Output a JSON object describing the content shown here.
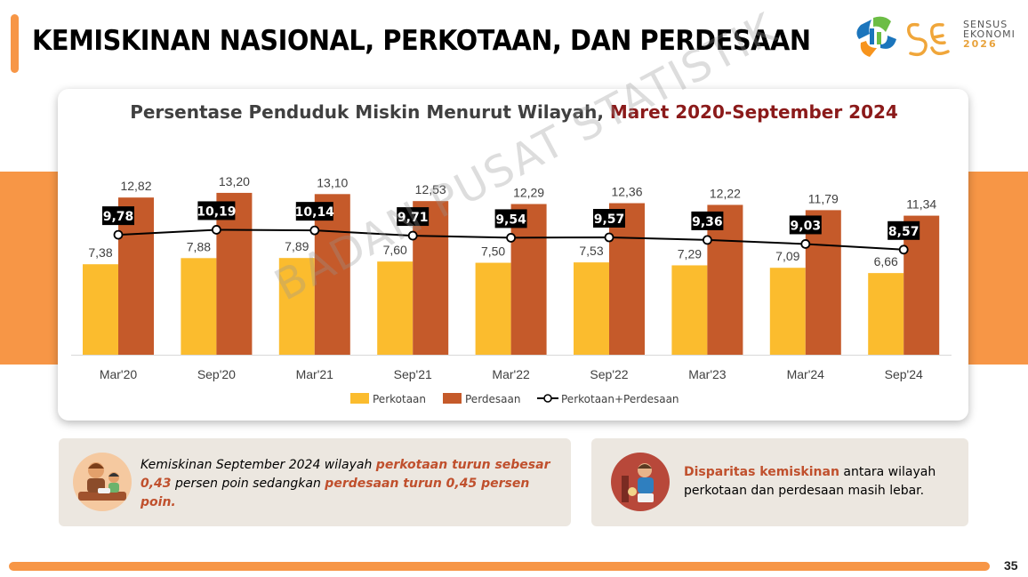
{
  "header": {
    "title": "KEMISKINAN NASIONAL, PERKOTAAN, DAN PERDESAAN",
    "logo_line1": "SENSUS",
    "logo_line2": "EKONOMI",
    "logo_line3": "2026"
  },
  "watermark": "BADAN PUSAT STATISTIK",
  "chart_data": {
    "type": "bar",
    "title_main": "Persentase Penduduk Miskin Menurut Wilayah, ",
    "title_highlight": "Maret 2020-September 2024",
    "categories": [
      "Mar'20",
      "Sep'20",
      "Mar'21",
      "Sep'21",
      "Mar'22",
      "Sep'22",
      "Mar'23",
      "Mar'24",
      "Sep'24"
    ],
    "series": [
      {
        "name": "Perkotaan",
        "type": "bar",
        "color": "#fbbc2e",
        "values": [
          7.38,
          7.88,
          7.89,
          7.6,
          7.5,
          7.53,
          7.29,
          7.09,
          6.66
        ],
        "labels": [
          "7,38",
          "7,88",
          "7,89",
          "7,60",
          "7,50",
          "7,53",
          "7,29",
          "7,09",
          "6,66"
        ]
      },
      {
        "name": "Perdesaan",
        "type": "bar",
        "color": "#c55a2a",
        "values": [
          12.82,
          13.2,
          13.1,
          12.53,
          12.29,
          12.36,
          12.22,
          11.79,
          11.34
        ],
        "labels": [
          "12,82",
          "13,20",
          "13,10",
          "12,53",
          "12,29",
          "12,36",
          "12,22",
          "11,79",
          "11,34"
        ]
      },
      {
        "name": "Perkotaan+Perdesaan",
        "type": "line",
        "color": "#000000",
        "values": [
          9.78,
          10.19,
          10.14,
          9.71,
          9.54,
          9.57,
          9.36,
          9.03,
          8.57
        ],
        "labels": [
          "9,78",
          "10,19",
          "10,14",
          "9,71",
          "9,54",
          "9,57",
          "9,36",
          "9,03",
          "8,57"
        ]
      }
    ],
    "ylim": [
      0,
      14.5
    ],
    "grid": false,
    "legend": "bottom"
  },
  "notes": [
    {
      "parts": [
        {
          "text": "Kemiskinan September 2024 wilayah ",
          "em": false
        },
        {
          "text": "perkotaan turun sebesar 0,43",
          "em": true
        },
        {
          "text": " persen poin sedangkan ",
          "em": false
        },
        {
          "text": "perdesaan turun 0,45 persen poin.",
          "em": true
        }
      ]
    },
    {
      "parts": [
        {
          "text": "Disparitas kemiskinan",
          "em": true
        },
        {
          "text": " antara wilayah perkotaan dan perdesaan masih lebar.",
          "em": false
        }
      ]
    }
  ],
  "footer": {
    "page_number": "35"
  }
}
